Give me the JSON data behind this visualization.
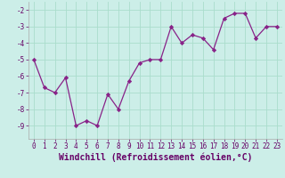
{
  "x": [
    0,
    1,
    2,
    3,
    4,
    5,
    6,
    7,
    8,
    9,
    10,
    11,
    12,
    13,
    14,
    15,
    16,
    17,
    18,
    19,
    20,
    21,
    22,
    23
  ],
  "y": [
    -5,
    -6.7,
    -7.0,
    -6.1,
    -9.0,
    -8.7,
    -9.0,
    -7.1,
    -8.0,
    -6.3,
    -5.2,
    -5.0,
    -5.0,
    -3.0,
    -4.0,
    -3.5,
    -3.7,
    -4.4,
    -2.5,
    -2.2,
    -2.2,
    -3.7,
    -3.0,
    -3.0
  ],
  "line_color": "#882288",
  "marker": "D",
  "marker_size": 2.2,
  "bg_color": "#cceee8",
  "grid_color": "#aaddcc",
  "xlabel": "Windchill (Refroidissement éolien,°C)",
  "xlabel_fontsize": 7,
  "ylabel_ticks": [
    -9,
    -8,
    -7,
    -6,
    -5,
    -4,
    -3,
    -2
  ],
  "xlim": [
    -0.5,
    23.5
  ],
  "ylim": [
    -9.8,
    -1.5
  ],
  "xtick_labels": [
    "0",
    "1",
    "2",
    "3",
    "4",
    "5",
    "6",
    "7",
    "8",
    "9",
    "10",
    "11",
    "12",
    "13",
    "14",
    "15",
    "16",
    "17",
    "18",
    "19",
    "20",
    "21",
    "22",
    "23"
  ],
  "tick_fontsize": 5.5,
  "linewidth": 0.9
}
